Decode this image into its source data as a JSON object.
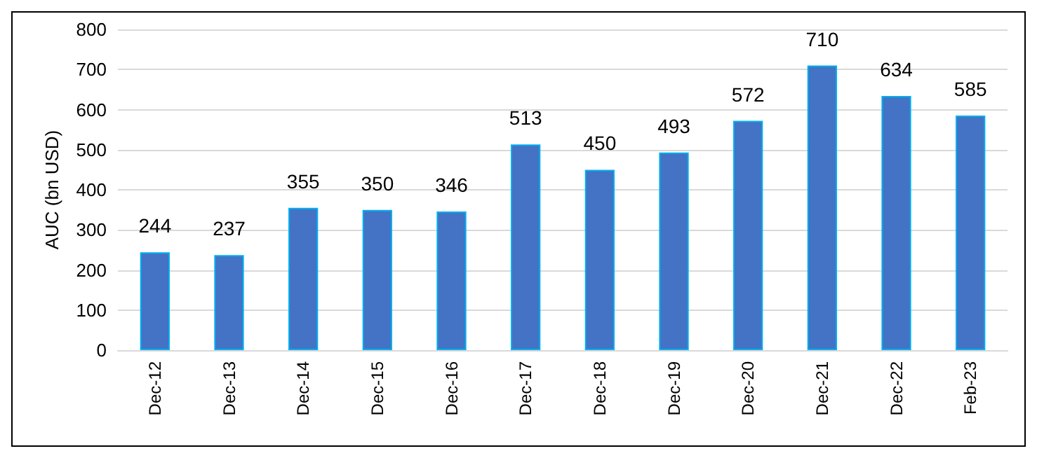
{
  "chart_data": {
    "type": "bar",
    "ylabel": "AUC (bn USD)",
    "categories": [
      "Dec-12",
      "Dec-13",
      "Dec-14",
      "Dec-15",
      "Dec-16",
      "Dec-17",
      "Dec-18",
      "Dec-19",
      "Dec-20",
      "Dec-21",
      "Dec-22",
      "Feb-23"
    ],
    "values": [
      244,
      237,
      355,
      350,
      346,
      513,
      450,
      493,
      572,
      710,
      634,
      585
    ],
    "color": "#4472c4",
    "ylim": [
      0,
      800
    ],
    "yticks": [
      0,
      100,
      200,
      300,
      400,
      500,
      600,
      700,
      800
    ],
    "grid": "y",
    "data_labels": true
  }
}
